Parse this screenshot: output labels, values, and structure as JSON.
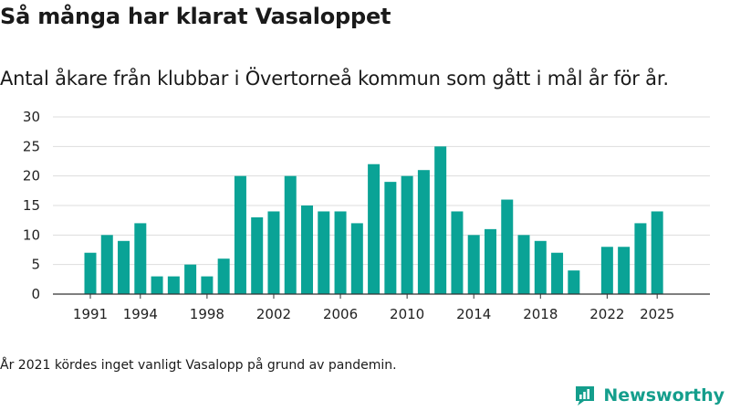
{
  "title": "Så många har klarat Vasaloppet",
  "subtitle": "Antal åkare från klubbar i Övertorneå kommun som gått i mål år för år.",
  "note": "År 2021 kördes inget vanligt Vasalopp på grund av pandemin.",
  "brand": {
    "name": "Newsworthy",
    "color": "#149e8c"
  },
  "chart_data": {
    "type": "bar",
    "title": "Så många har klarat Vasaloppet",
    "xlabel": "",
    "ylabel": "",
    "bar_color": "#0aa396",
    "grid": true,
    "ylim": [
      0,
      30
    ],
    "yticks": [
      0,
      5,
      10,
      15,
      20,
      25,
      30
    ],
    "xticks": [
      1991,
      1994,
      1998,
      2002,
      2006,
      2010,
      2014,
      2018,
      2022,
      2025
    ],
    "categories": [
      1991,
      1992,
      1993,
      1994,
      1995,
      1996,
      1997,
      1998,
      1999,
      2000,
      2001,
      2002,
      2003,
      2004,
      2005,
      2006,
      2007,
      2008,
      2009,
      2010,
      2011,
      2012,
      2013,
      2014,
      2015,
      2016,
      2017,
      2018,
      2019,
      2020,
      2021,
      2022,
      2023,
      2024,
      2025
    ],
    "values": [
      7,
      10,
      9,
      12,
      3,
      3,
      5,
      3,
      6,
      20,
      13,
      14,
      20,
      15,
      14,
      14,
      12,
      22,
      19,
      20,
      21,
      25,
      14,
      10,
      11,
      16,
      10,
      9,
      7,
      4,
      null,
      8,
      8,
      12,
      14
    ]
  }
}
